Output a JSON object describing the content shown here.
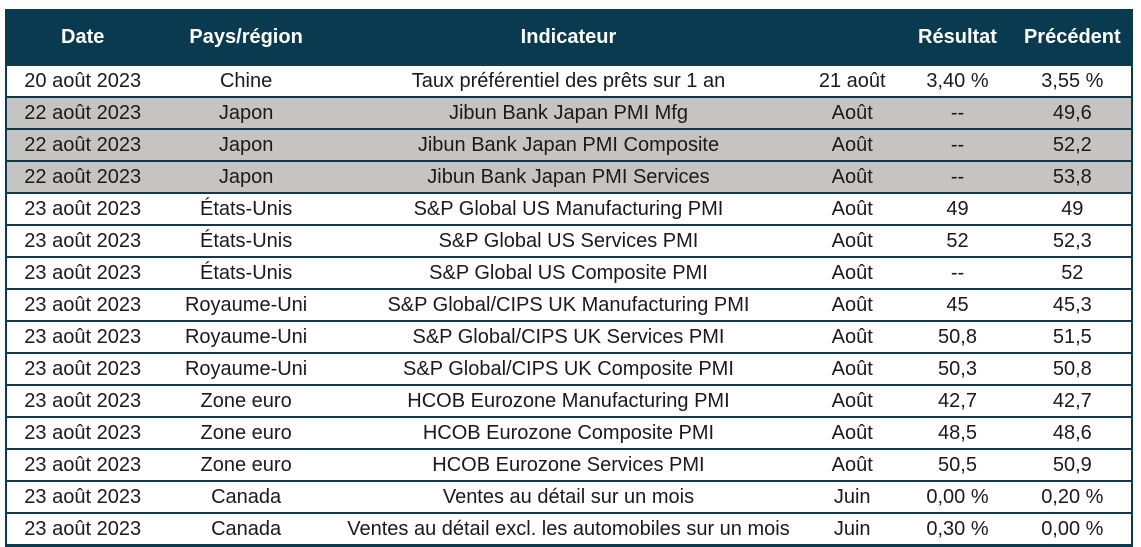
{
  "colors": {
    "header_bg": "#0a3a50",
    "header_text": "#ffffff",
    "row_highlight": "#c5c4c2",
    "row_bg": "#ffffff",
    "border": "#0f3a4e",
    "text": "#1a1a1a"
  },
  "table": {
    "columns": [
      "Date",
      "Pays/région",
      "Indicateur",
      "",
      "Résultat",
      "Précédent"
    ],
    "rows": [
      {
        "date": "20 août 2023",
        "region": "Chine",
        "indicator": "Taux préférentiel des prêts sur 1 an",
        "period": "21 août",
        "result": "3,40 %",
        "previous": "3,55 %",
        "highlighted": false
      },
      {
        "date": "22 août 2023",
        "region": "Japon",
        "indicator": "Jibun Bank Japan PMI Mfg",
        "period": "Août",
        "result": "--",
        "previous": "49,6",
        "highlighted": true
      },
      {
        "date": "22 août 2023",
        "region": "Japon",
        "indicator": "Jibun Bank Japan PMI Composite",
        "period": "Août",
        "result": "--",
        "previous": "52,2",
        "highlighted": true
      },
      {
        "date": "22 août 2023",
        "region": "Japon",
        "indicator": "Jibun Bank Japan PMI Services",
        "period": "Août",
        "result": "--",
        "previous": "53,8",
        "highlighted": true
      },
      {
        "date": "23 août 2023",
        "region": "États-Unis",
        "indicator": "S&P Global US Manufacturing PMI",
        "period": "Août",
        "result": "49",
        "previous": "49",
        "highlighted": false
      },
      {
        "date": "23 août 2023",
        "region": "États-Unis",
        "indicator": "S&P Global US Services PMI",
        "period": "Août",
        "result": "52",
        "previous": "52,3",
        "highlighted": false
      },
      {
        "date": "23 août 2023",
        "region": "États-Unis",
        "indicator": "S&P Global US Composite PMI",
        "period": "Août",
        "result": "--",
        "previous": "52",
        "highlighted": false
      },
      {
        "date": "23 août 2023",
        "region": "Royaume-Uni",
        "indicator": "S&P Global/CIPS UK Manufacturing PMI",
        "period": "Août",
        "result": "45",
        "previous": "45,3",
        "highlighted": false
      },
      {
        "date": "23 août 2023",
        "region": "Royaume-Uni",
        "indicator": "S&P Global/CIPS UK Services PMI",
        "period": "Août",
        "result": "50,8",
        "previous": "51,5",
        "highlighted": false
      },
      {
        "date": "23 août 2023",
        "region": "Royaume-Uni",
        "indicator": "S&P Global/CIPS UK Composite PMI",
        "period": "Août",
        "result": "50,3",
        "previous": "50,8",
        "highlighted": false
      },
      {
        "date": "23 août 2023",
        "region": "Zone euro",
        "indicator": "HCOB Eurozone Manufacturing PMI",
        "period": "Août",
        "result": "42,7",
        "previous": "42,7",
        "highlighted": false
      },
      {
        "date": "23 août 2023",
        "region": "Zone euro",
        "indicator": "HCOB Eurozone Composite PMI",
        "period": "Août",
        "result": "48,5",
        "previous": "48,6",
        "highlighted": false
      },
      {
        "date": "23 août 2023",
        "region": "Zone euro",
        "indicator": "HCOB Eurozone Services PMI",
        "period": "Août",
        "result": "50,5",
        "previous": "50,9",
        "highlighted": false
      },
      {
        "date": "23 août 2023",
        "region": "Canada",
        "indicator": "Ventes au détail sur un mois",
        "period": "Juin",
        "result": "0,00 %",
        "previous": "0,20 %",
        "highlighted": false
      },
      {
        "date": "23 août 2023",
        "region": "Canada",
        "indicator": "Ventes au détail excl. les automobiles sur un mois",
        "period": "Juin",
        "result": "0,30 %",
        "previous": "0,00 %",
        "highlighted": false
      }
    ]
  }
}
